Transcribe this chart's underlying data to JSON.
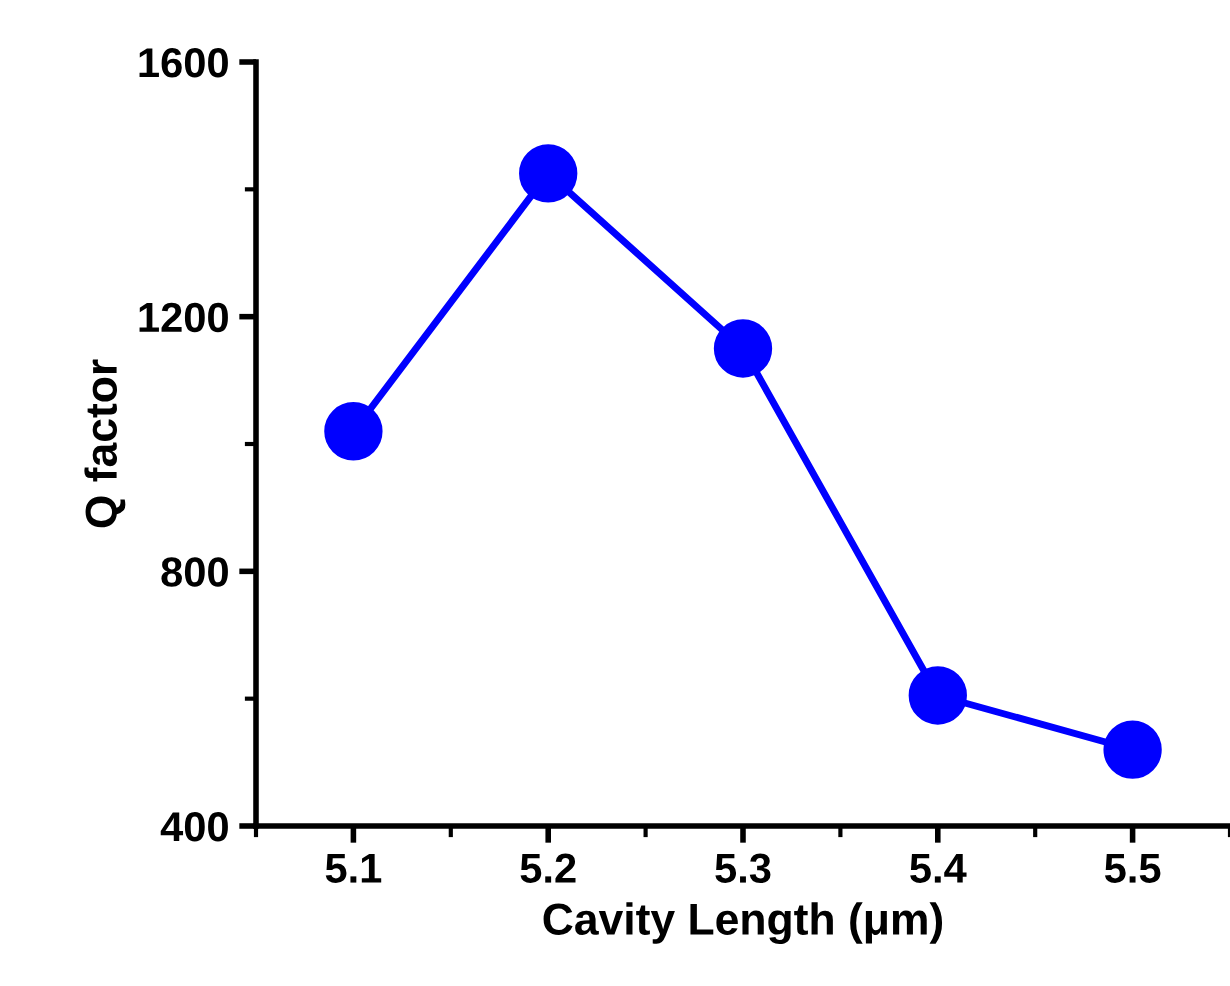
{
  "chart_data": {
    "type": "line",
    "xlabel": "Cavity Length (μm)",
    "ylabel": "Q factor",
    "x": [
      5.1,
      5.2,
      5.3,
      5.4,
      5.5
    ],
    "series": [
      {
        "color": "#0000ff",
        "values": [
          1020,
          1425,
          1150,
          605,
          520
        ]
      }
    ],
    "xlim": [
      5.05,
      5.55
    ],
    "xticks": [
      5.1,
      5.2,
      5.3,
      5.4,
      5.5
    ],
    "ylim": [
      400,
      1600
    ],
    "yticks": [
      400,
      800,
      1200,
      1600
    ],
    "marker": "circle",
    "line_style": "solid",
    "grid": false,
    "legend": false
  }
}
